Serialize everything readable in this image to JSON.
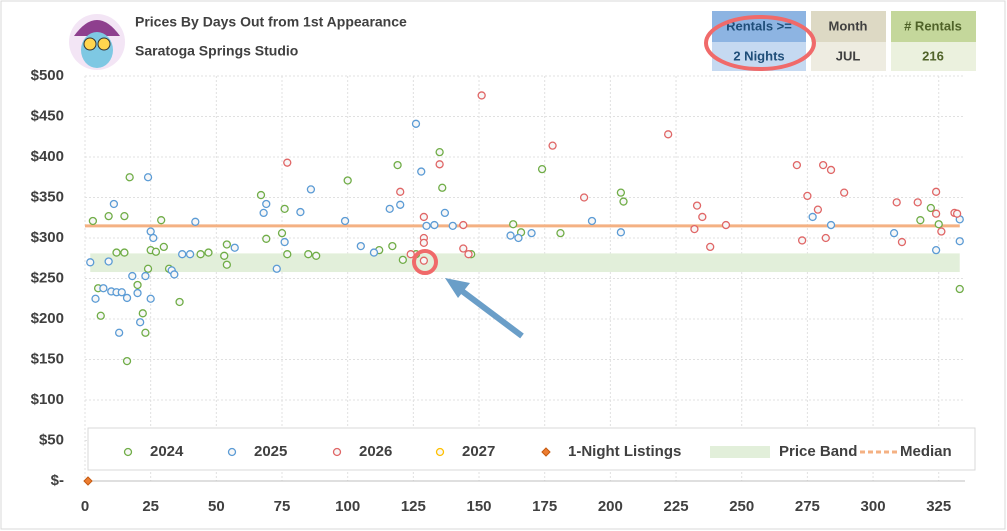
{
  "chart_data": {
    "type": "scatter",
    "title": "Prices By Days Out from 1st Appearance",
    "subtitle": "Saratoga Springs Studio",
    "filters": {
      "rentals_label": "Rentals >=",
      "rentals_value": "2 Nights",
      "month_label": "Month",
      "month_value": "JUL",
      "count_label": "# Rentals",
      "count_value": "216"
    },
    "xlim": [
      0,
      335
    ],
    "ylim": [
      0,
      500
    ],
    "xticks": [
      0,
      25,
      50,
      75,
      100,
      125,
      150,
      175,
      200,
      225,
      250,
      275,
      300,
      325
    ],
    "yticks": [
      {
        "value": 0,
        "label": "$-"
      },
      {
        "value": 50,
        "label": "$50"
      },
      {
        "value": 100,
        "label": "$100"
      },
      {
        "value": 150,
        "label": "$150"
      },
      {
        "value": 200,
        "label": "$200"
      },
      {
        "value": 250,
        "label": "$250"
      },
      {
        "value": 300,
        "label": "$300"
      },
      {
        "value": 350,
        "label": "$350"
      },
      {
        "value": 400,
        "label": "$400"
      },
      {
        "value": 450,
        "label": "$450"
      },
      {
        "value": 500,
        "label": "$500"
      }
    ],
    "grid": true,
    "series": [
      {
        "name": "2024",
        "color": "#70ad47",
        "x": [
          3,
          9,
          15,
          17,
          6,
          5,
          12,
          15,
          16,
          20,
          22,
          23,
          24,
          25,
          27,
          29,
          30,
          32,
          36,
          44,
          47,
          53,
          54,
          54,
          67,
          69,
          75,
          76,
          77,
          85,
          88,
          100,
          112,
          117,
          119,
          121,
          136,
          135,
          147,
          163,
          166,
          174,
          181,
          204,
          205,
          318,
          322,
          325,
          333,
          126
        ],
        "values": [
          321,
          327,
          327,
          375,
          204,
          238,
          282,
          282,
          148,
          242,
          207,
          183,
          262,
          285,
          283,
          322,
          289,
          262,
          221,
          280,
          282,
          278,
          267,
          292,
          353,
          299,
          306,
          336,
          280,
          280,
          278,
          371,
          285,
          290,
          390,
          273,
          362,
          406,
          280,
          317,
          307,
          385,
          306,
          356,
          345,
          322,
          337,
          317,
          237,
          280
        ]
      },
      {
        "name": "2025",
        "color": "#5b9bd5",
        "x": [
          2,
          4,
          7,
          9,
          10,
          11,
          12,
          13,
          14,
          16,
          18,
          20,
          21,
          24,
          25,
          25,
          26,
          23,
          33,
          34,
          37,
          40,
          42,
          57,
          68,
          69,
          73,
          76,
          82,
          86,
          99,
          105,
          110,
          116,
          120,
          126,
          128,
          130,
          133,
          137,
          140,
          162,
          165,
          170,
          193,
          204,
          277,
          284,
          308,
          324,
          333,
          333
        ],
        "values": [
          270,
          225,
          238,
          271,
          234,
          342,
          233,
          183,
          233,
          226,
          253,
          232,
          196,
          375,
          308,
          225,
          300,
          253,
          260,
          255,
          280,
          280,
          320,
          288,
          331,
          342,
          262,
          295,
          332,
          360,
          321,
          290,
          282,
          336,
          341,
          441,
          382,
          315,
          316,
          331,
          315,
          303,
          300,
          306,
          321,
          307,
          326,
          316,
          306,
          285,
          323,
          296
        ]
      },
      {
        "name": "2026",
        "color": "#e06666",
        "x": [
          77,
          120,
          124,
          129,
          129,
          129,
          129,
          135,
          144,
          144,
          146,
          151,
          178,
          190,
          222,
          232,
          233,
          235,
          238,
          244,
          271,
          273,
          275,
          279,
          281,
          282,
          284,
          289,
          309,
          311,
          317,
          324,
          324,
          326,
          331,
          332
        ],
        "values": [
          393,
          357,
          280,
          326,
          300,
          294,
          272,
          391,
          316,
          287,
          280,
          476,
          414,
          350,
          428,
          311,
          340,
          326,
          289,
          316,
          390,
          297,
          352,
          335,
          390,
          300,
          384,
          356,
          344,
          295,
          344,
          357,
          330,
          308,
          331,
          330
        ]
      },
      {
        "name": "2027",
        "color": "#ffc000",
        "x": [],
        "values": []
      }
    ],
    "one_night": {
      "name": "1-Night Listings",
      "color": "#ed7d31",
      "x": [
        0
      ],
      "values": [
        0
      ]
    },
    "band": {
      "name": "Price Band",
      "color": "#e2efda",
      "x": [
        2,
        333
      ],
      "low": 258,
      "high": 281
    },
    "median": {
      "name": "Median",
      "color": "#f4b183",
      "x": [
        0,
        333
      ],
      "value": 315
    }
  }
}
